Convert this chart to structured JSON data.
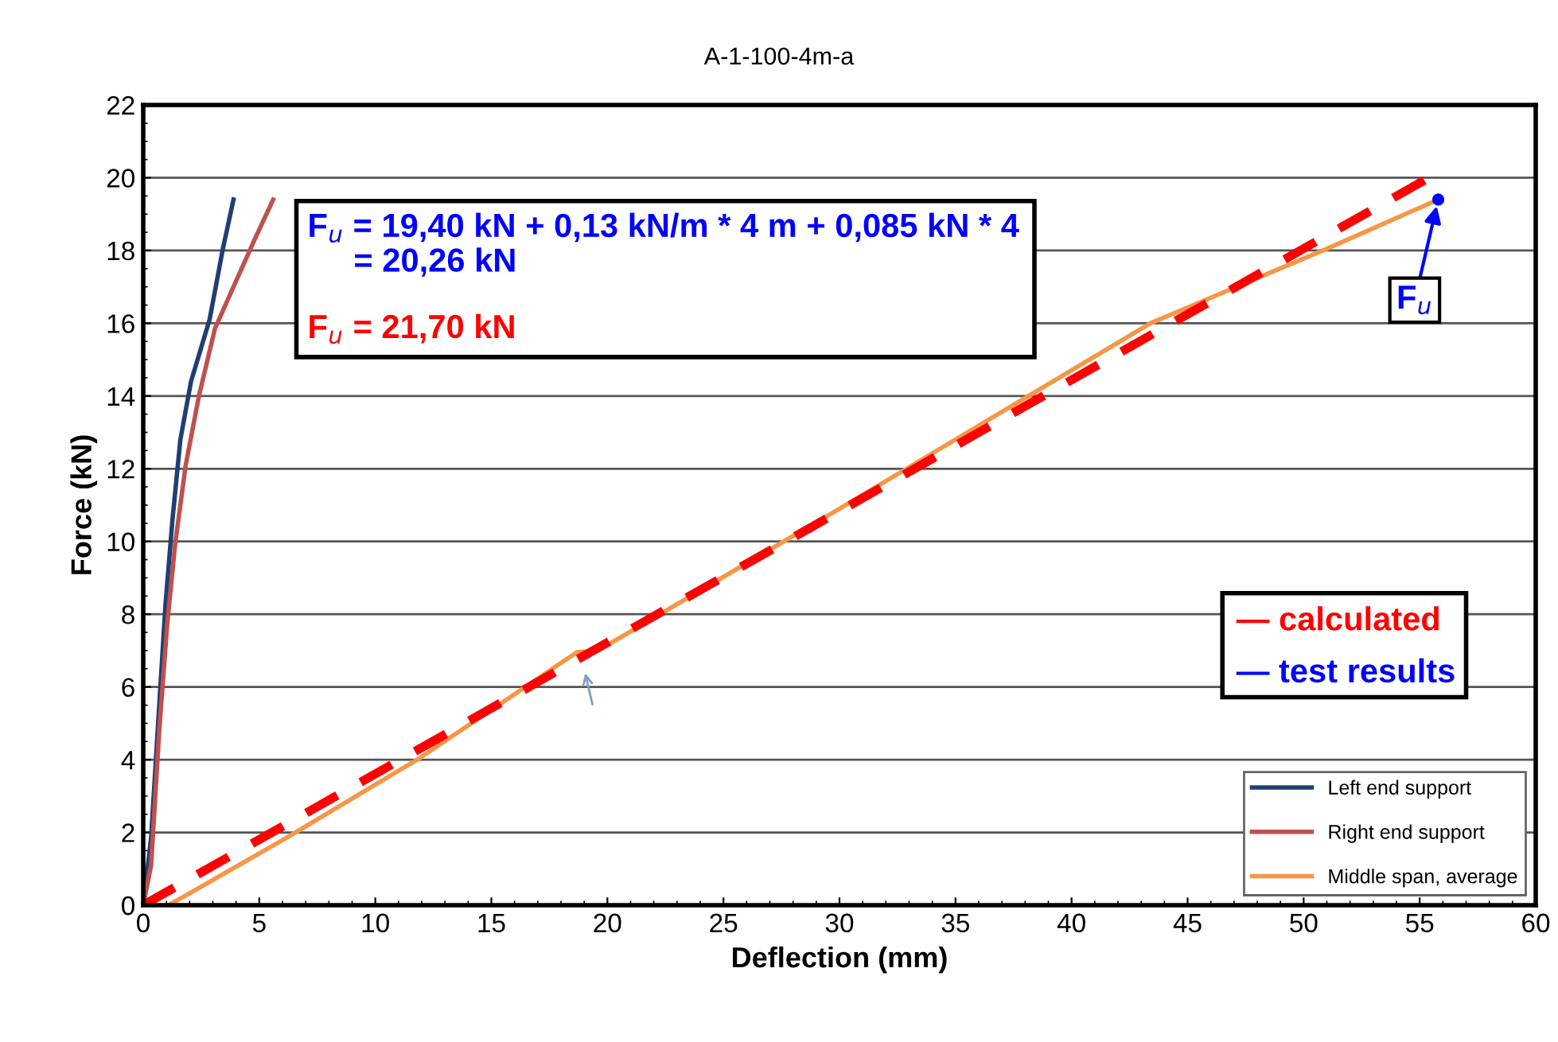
{
  "chart_data": {
    "type": "line",
    "title": "A-1-100-4m-a",
    "xlabel": "Deflection (mm)",
    "ylabel": "Force (kN)",
    "xlim": [
      0,
      60
    ],
    "xticks": [
      0,
      5,
      10,
      15,
      20,
      25,
      30,
      35,
      40,
      45,
      50,
      55,
      60
    ],
    "ylim": [
      0,
      22
    ],
    "yticks": [
      0,
      2,
      4,
      6,
      8,
      10,
      12,
      14,
      16,
      18,
      20,
      22
    ],
    "grid": "y",
    "legend": "bottom right",
    "line_style": "solid",
    "marker": "none",
    "series": [
      {
        "name": "Left end support",
        "color": "#1f3f73",
        "x": [
          0,
          0.34,
          0.69,
          0.96,
          1.26,
          1.6,
          2.06,
          2.86,
          3.43,
          3.89
        ],
        "values": [
          0,
          1.85,
          5.5,
          8.27,
          10.6,
          12.8,
          14.4,
          16.1,
          18.04,
          19.4
        ]
      },
      {
        "name": "Right end support",
        "color": "#c0504d",
        "x": [
          0,
          0.34,
          0.69,
          1.03,
          1.37,
          1.83,
          2.4,
          3.09,
          3.89,
          4.8,
          5.6
        ],
        "values": [
          0,
          1.1,
          4.8,
          7.7,
          9.9,
          12.1,
          14.0,
          15.85,
          17.0,
          18.3,
          19.4
        ]
      },
      {
        "name": "Middle span, average",
        "color": "#f79646",
        "x": [
          1.1,
          6.17,
          11.9,
          18.7,
          19.6,
          30,
          43.4,
          50.97,
          55.8
        ],
        "values": [
          0,
          1.85,
          4.04,
          6.96,
          7.0,
          10.9,
          16.0,
          18.04,
          19.4
        ]
      },
      {
        "type": "line",
        "color": "#ff0000",
        "line_style": "dashed",
        "x": [
          0,
          55.2
        ],
        "values": [
          0,
          19.93
        ]
      },
      {
        "type": "scatter",
        "color": "#0000ff",
        "marker": "circle",
        "x": [
          55.8
        ],
        "values": [
          19.4
        ]
      }
    ],
    "annotations": [
      "F$_{u}$ = 19,40 kN + 0,13 kN/m * 4 m + 0,085 kN * 4\n     = 20,26 kN",
      "F$_{u}$ = 21,70 kN",
      "— calculated",
      "— test results",
      {
        "text": "F$_{u}$",
        "x": 55.8,
        "y": 19.4
      }
    ]
  }
}
